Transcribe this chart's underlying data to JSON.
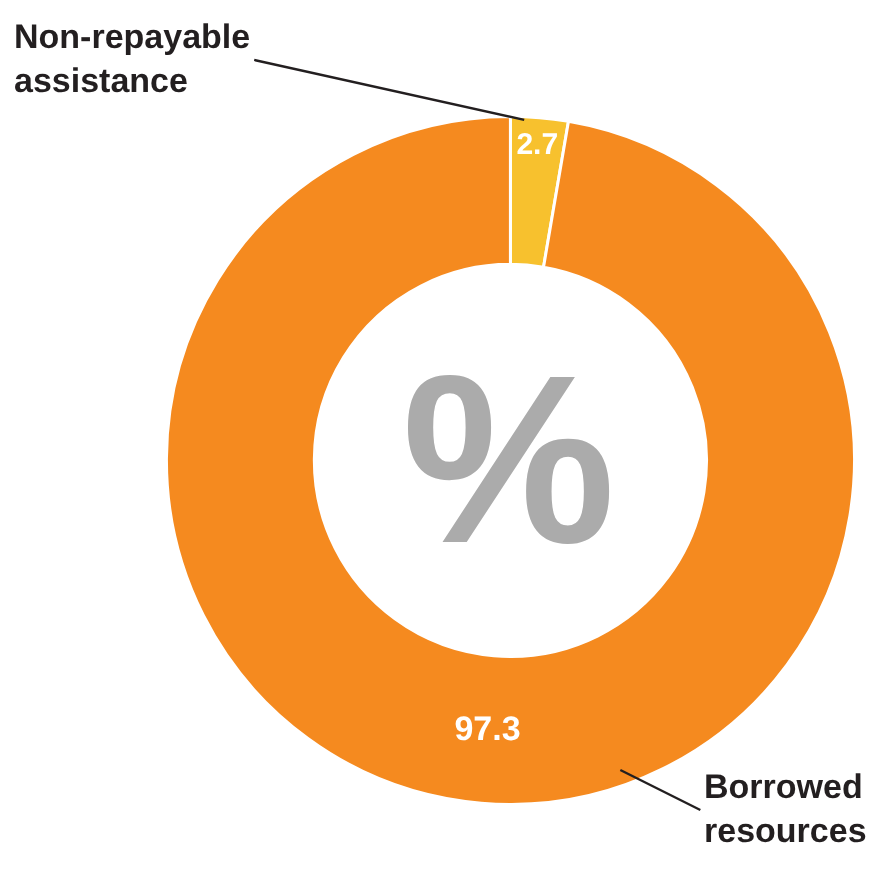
{
  "chart_data": {
    "type": "donut",
    "categories": [
      "Non-repayable assistance",
      "Borrowed resources"
    ],
    "values": [
      2.7,
      97.3
    ],
    "colors": [
      "#f7c12e",
      "#f58a1f"
    ],
    "data_labels": true,
    "legend": false,
    "annotations": [
      "%"
    ]
  }
}
